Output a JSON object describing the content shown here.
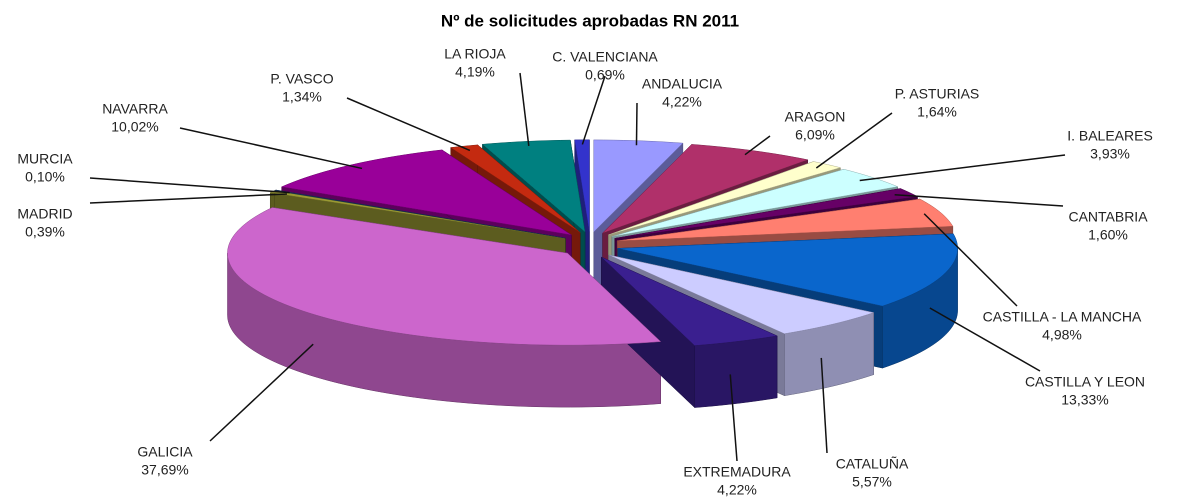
{
  "chart_data": {
    "type": "pie",
    "title": "Nº de solicitudes aprobadas RN 2011",
    "categories": [
      "ANDALUCIA",
      "ARAGON",
      "P. ASTURIAS",
      "I. BALEARES",
      "CANTABRIA",
      "CASTILLA - LA MANCHA",
      "CASTILLA Y LEON",
      "CATALUÑA",
      "EXTREMADURA",
      "GALICIA",
      "MADRID",
      "MURCIA",
      "NAVARRA",
      "P. VASCO",
      "LA RIOJA",
      "C. VALENCIANA"
    ],
    "values": [
      4.22,
      6.09,
      1.64,
      3.93,
      1.6,
      4.98,
      13.33,
      5.57,
      4.22,
      37.69,
      0.39,
      0.1,
      10.02,
      1.34,
      4.19,
      0.69
    ],
    "value_labels": [
      "4,22%",
      "6,09%",
      "1,64%",
      "3,93%",
      "1,60%",
      "4,98%",
      "13,33%",
      "5,57%",
      "4,22%",
      "37,69%",
      "0,39%",
      "0,10%",
      "10,02%",
      "1,34%",
      "4,19%",
      "0,69%"
    ],
    "colors": [
      "#9999ff",
      "#b0306a",
      "#ffffcc",
      "#ccffff",
      "#660066",
      "#ff7f70",
      "#0a66cc",
      "#ccccff",
      "#3a1f8f",
      "#cc66cc",
      "#999933",
      "#1f3f6f",
      "#990099",
      "#c42a10",
      "#008080",
      "#3333cc"
    ]
  }
}
